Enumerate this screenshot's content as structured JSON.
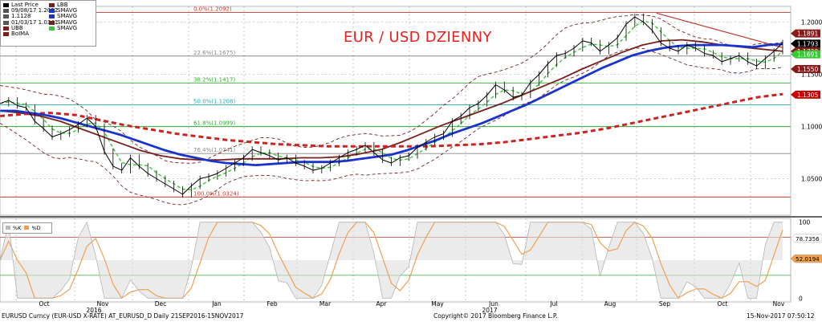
{
  "title": "EUR / USD DZIENNY",
  "legend": {
    "col1": [
      {
        "label": "Last Price",
        "color": "#000000"
      },
      {
        "label": "09/08/17 1.2092",
        "color": "#555555"
      },
      {
        "label": "1.1128",
        "color": "#555555"
      },
      {
        "label": "01/03/17 1.0341",
        "color": "#555555"
      },
      {
        "label": "UBB",
        "color": "#7a1f1f"
      },
      {
        "label": "BoIMA",
        "color": "#7a1f1f"
      }
    ],
    "col2": [
      {
        "label": "LBB",
        "color": "#7a1f1f"
      },
      {
        "label": "SMAVG",
        "color": "#1a33cc"
      },
      {
        "label": "SMAVG",
        "color": "#1a33cc"
      },
      {
        "label": "SMAVG",
        "color": "#7a1f1f"
      },
      {
        "label": "SMAVG",
        "color": "#33cc33"
      }
    ]
  },
  "osc_legend": [
    "%K",
    "%D"
  ],
  "fib_levels": [
    {
      "label": "0.0%(1.2092)",
      "value": 1.2092,
      "color": "#c0392b"
    },
    {
      "label": "22.6%(1.1675)",
      "value": 1.1675,
      "color": "#888888"
    },
    {
      "label": "38.2%(1.1417)",
      "value": 1.1417,
      "color": "#33aa33"
    },
    {
      "label": "50.0%(1.1208)",
      "value": 1.1208,
      "color": "#22aaaa"
    },
    {
      "label": "61.8%(1.0999)",
      "value": 1.0999,
      "color": "#33aa33"
    },
    {
      "label": "76.4%(1.0741)",
      "value": 1.0741,
      "color": "#888888"
    },
    {
      "label": "100.0%(1.0324)",
      "value": 1.0324,
      "color": "#c0392b"
    }
  ],
  "price_axis": {
    "ticks": [
      "1.2000",
      "1.1500",
      "1.1000",
      "1.0500"
    ],
    "tick_values": [
      1.2,
      1.15,
      1.1,
      1.05
    ],
    "ylim": [
      1.015,
      1.215
    ],
    "tags": [
      {
        "text": "1.1891",
        "value": 1.1891,
        "bg": "#8b1a1a",
        "fg": "#ffffff"
      },
      {
        "text": "1.1793",
        "value": 1.1793,
        "bg": "#000000",
        "fg": "#ffffff"
      },
      {
        "text": "1.1720",
        "value": 1.172,
        "bg": "#8b1a1a",
        "fg": "#ffffff"
      },
      {
        "text": "1.1691",
        "value": 1.1691,
        "bg": "#33cc33",
        "fg": "#ffffff"
      },
      {
        "text": "1.1550",
        "value": 1.155,
        "bg": "#8b1a1a",
        "fg": "#ffffff"
      },
      {
        "text": "1.1305",
        "value": 1.1305,
        "bg": "#cc0000",
        "fg": "#ffffff"
      }
    ]
  },
  "osc_axis": {
    "ticks": [
      "100",
      "50",
      "0"
    ],
    "tick_values": [
      100,
      50,
      0
    ],
    "ylim": [
      -5,
      105
    ],
    "levels": [
      80,
      30
    ],
    "tags": [
      {
        "text": "78.7356",
        "value": 78.7356,
        "bg": "#ffffff",
        "fg": "#000000"
      },
      {
        "text": "52.0194",
        "value": 52.0194,
        "bg": "#f0a050",
        "fg": "#000000"
      }
    ]
  },
  "x_axis": {
    "months": [
      "Oct",
      "Nov",
      "Dec",
      "Jan",
      "Feb",
      "Mar",
      "Apr",
      "May",
      "Jun",
      "Jul",
      "Aug",
      "Sep",
      "Oct",
      "Nov"
    ],
    "years": [
      "2016",
      "2017"
    ]
  },
  "footer": {
    "left": "EURUSD Curncy (EUR-USD X-RATE) AT_EURUSD_D  Daily 21SEP2016-15NOV2017",
    "center": "Copyright© 2017 Bloomberg Finance L.P.",
    "right": "15-Nov-2017 07:50:12"
  },
  "chart_data": {
    "type": "line",
    "ylabel": "",
    "ylim": [
      1.015,
      1.215
    ],
    "series": [
      {
        "name": "Last Price",
        "color": "#000000",
        "values": [
          1.122,
          1.125,
          1.12,
          1.118,
          1.105,
          1.098,
          1.09,
          1.093,
          1.097,
          1.102,
          1.108,
          1.1,
          1.076,
          1.062,
          1.058,
          1.07,
          1.062,
          1.055,
          1.05,
          1.045,
          1.04,
          1.035,
          1.043,
          1.05,
          1.052,
          1.055,
          1.06,
          1.065,
          1.07,
          1.078,
          1.075,
          1.072,
          1.068,
          1.07,
          1.065,
          1.062,
          1.058,
          1.06,
          1.065,
          1.07,
          1.075,
          1.078,
          1.082,
          1.075,
          1.068,
          1.065,
          1.07,
          1.072,
          1.08,
          1.085,
          1.09,
          1.093,
          1.105,
          1.11,
          1.118,
          1.122,
          1.13,
          1.14,
          1.135,
          1.128,
          1.13,
          1.142,
          1.15,
          1.16,
          1.168,
          1.17,
          1.175,
          1.182,
          1.18,
          1.172,
          1.178,
          1.185,
          1.198,
          1.205,
          1.2,
          1.192,
          1.18,
          1.175,
          1.172,
          1.178,
          1.175,
          1.17,
          1.168,
          1.162,
          1.165,
          1.168,
          1.162,
          1.158,
          1.165,
          1.172,
          1.18
        ]
      },
      {
        "name": "SMAVG",
        "color": "#1a33cc",
        "values": [
          1.115,
          1.115,
          1.113,
          1.111,
          1.108,
          1.104,
          1.1,
          1.096,
          1.092,
          1.087,
          1.082,
          1.077,
          1.073,
          1.07,
          1.067,
          1.065,
          1.064,
          1.063,
          1.064,
          1.065,
          1.066,
          1.066,
          1.066,
          1.067,
          1.069,
          1.071,
          1.073,
          1.077,
          1.082,
          1.087,
          1.093,
          1.098,
          1.103,
          1.109,
          1.115,
          1.121,
          1.128,
          1.135,
          1.142,
          1.149,
          1.156,
          1.162,
          1.168,
          1.172,
          1.175,
          1.177,
          1.178,
          1.178,
          1.178,
          1.177,
          1.176,
          1.178,
          1.179
        ]
      },
      {
        "name": "SMAVG",
        "color": "#cc2222",
        "values": [
          1.11,
          1.112,
          1.113,
          1.111,
          1.106,
          1.101,
          1.097,
          1.093,
          1.09,
          1.087,
          1.085,
          1.083,
          1.082,
          1.081,
          1.081,
          1.081,
          1.081,
          1.081,
          1.082,
          1.083,
          1.085,
          1.088,
          1.091,
          1.094,
          1.098,
          1.103,
          1.108,
          1.113,
          1.118,
          1.123,
          1.128,
          1.131
        ]
      },
      {
        "name": "SMAVG",
        "color": "#7a1f1f",
        "values": [
          1.115,
          1.113,
          1.11,
          1.105,
          1.098,
          1.091,
          1.084,
          1.077,
          1.072,
          1.069,
          1.068,
          1.068,
          1.069,
          1.069,
          1.069,
          1.07,
          1.07,
          1.071,
          1.074,
          1.078,
          1.085,
          1.093,
          1.101,
          1.108,
          1.115,
          1.122,
          1.13,
          1.138,
          1.146,
          1.155,
          1.163,
          1.171,
          1.178,
          1.182,
          1.183,
          1.181,
          1.178,
          1.176,
          1.174,
          1.172
        ]
      }
    ]
  }
}
